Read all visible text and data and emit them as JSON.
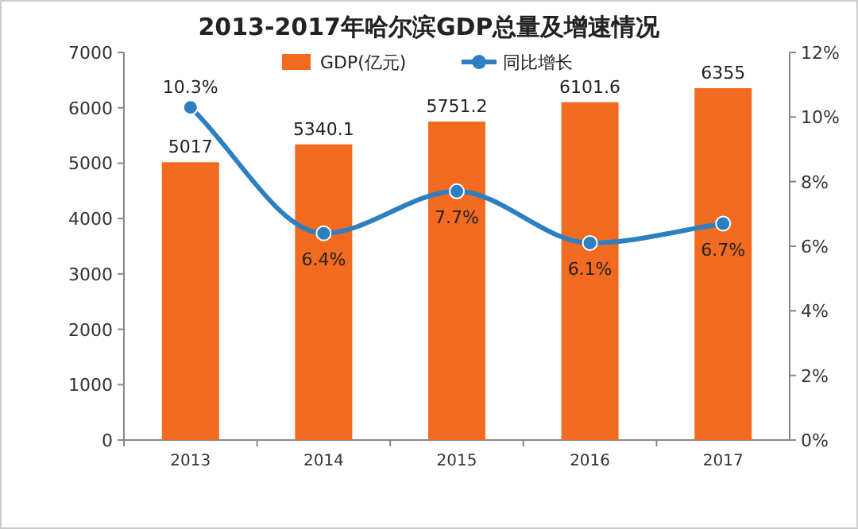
{
  "chart_data": {
    "type": "bar",
    "title": "2013-2017年哈尔滨GDP总量及增速情况",
    "categories": [
      "2013",
      "2014",
      "2015",
      "2016",
      "2017"
    ],
    "series": [
      {
        "name": "GDP(亿元)",
        "color": "#f26b21",
        "values": [
          5017,
          5340.1,
          5751.2,
          6101.6,
          6355
        ],
        "value_labels": [
          "5017",
          "5340.1",
          "5751.2",
          "6101.6",
          "6355"
        ]
      },
      {
        "name": "同比增长",
        "type": "line",
        "axis": "y2",
        "color": "#2e7fc1",
        "marker": "circle",
        "values": [
          10.3,
          6.4,
          7.7,
          6.1,
          6.7
        ],
        "value_labels": [
          "10.3%",
          "6.4%",
          "7.7%",
          "6.1%",
          "6.7%"
        ]
      }
    ],
    "ylim": [
      0,
      7000
    ],
    "yticks": [
      0,
      1000,
      2000,
      3000,
      4000,
      5000,
      6000,
      7000
    ],
    "y2lim": [
      0,
      12
    ],
    "y2ticks": [
      {
        "value": 0,
        "label": "0%"
      },
      {
        "value": 2,
        "label": "2%"
      },
      {
        "value": 4,
        "label": "4%"
      },
      {
        "value": 6,
        "label": "6%"
      },
      {
        "value": 8,
        "label": "8%"
      },
      {
        "value": 10,
        "label": "10%"
      },
      {
        "value": 12,
        "label": "12%"
      }
    ],
    "legend": "top",
    "grid": false
  }
}
